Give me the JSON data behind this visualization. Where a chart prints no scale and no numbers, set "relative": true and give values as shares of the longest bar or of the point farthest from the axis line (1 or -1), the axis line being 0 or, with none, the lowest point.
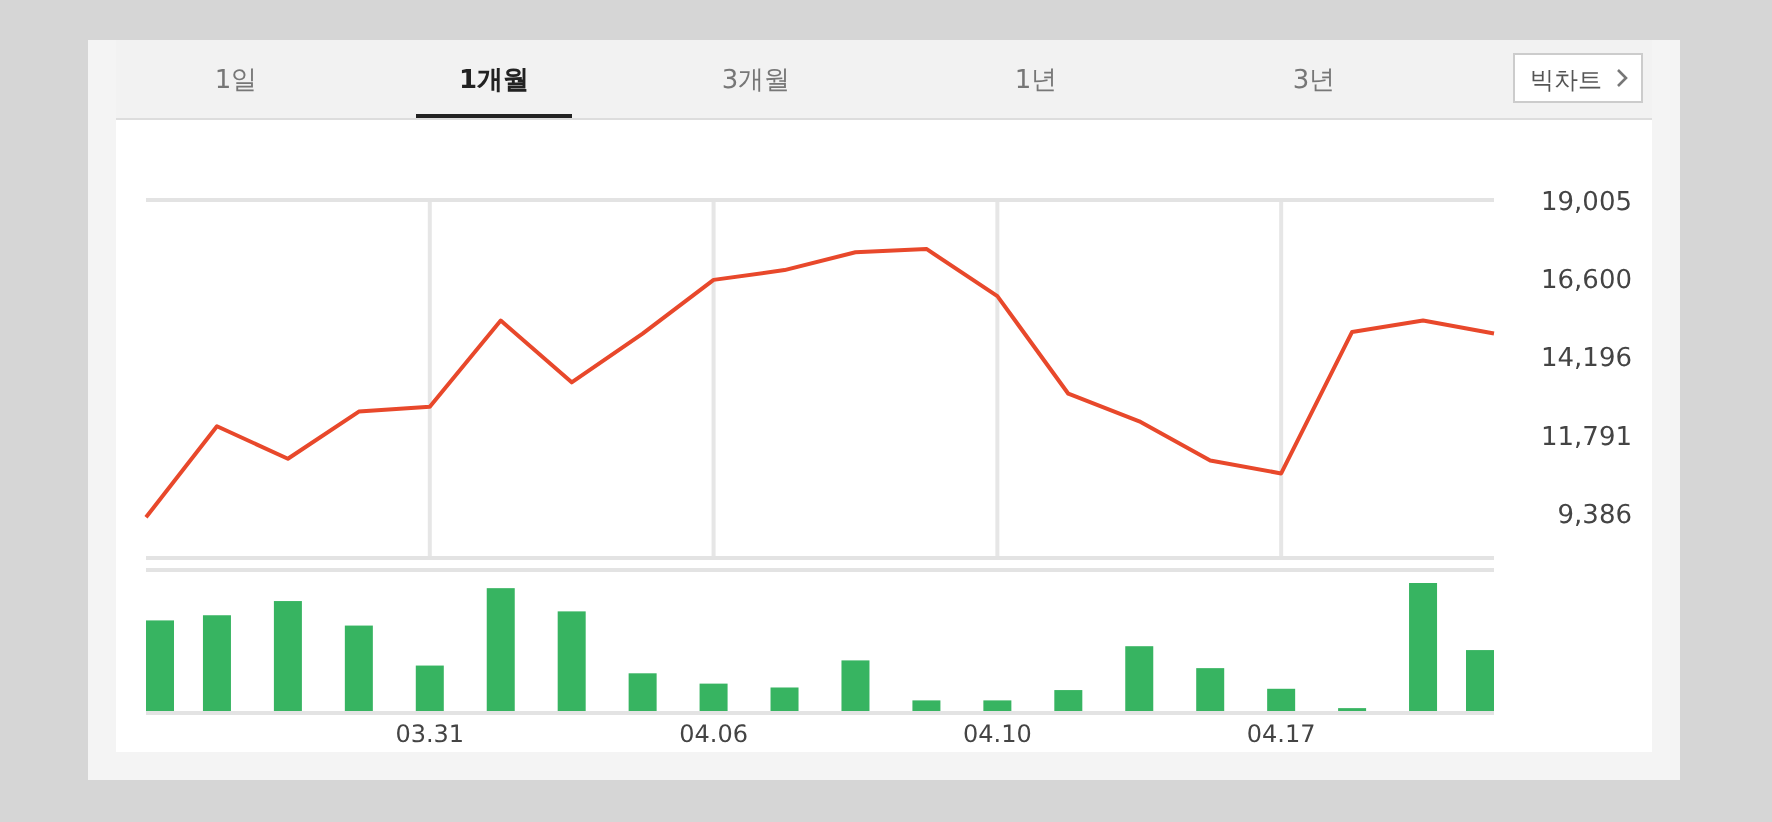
{
  "chart_data": [
    {
      "type": "line",
      "annotations": [
        "1일",
        "1개월",
        "3개월",
        "1년",
        "3년",
        "빅차트"
      ],
      "categories": [
        null,
        null,
        null,
        null,
        "03.31",
        null,
        null,
        null,
        "04.06",
        null,
        null,
        null,
        "04.10",
        null,
        null,
        null,
        "04.17",
        null,
        null,
        null
      ],
      "series": [
        {
          "color": "#e8482b",
          "values": [
            9250,
            12050,
            11050,
            12500,
            12650,
            15300,
            13400,
            14900,
            16550,
            16850,
            17400,
            17500,
            16050,
            13050,
            12200,
            11000,
            10600,
            14950,
            15300,
            14900
          ]
        }
      ],
      "ylim": [
        8000,
        19005
      ],
      "yticks": [
        {
          "value": 9386,
          "label": "9,386"
        },
        {
          "value": 11791,
          "label": "11,791"
        },
        {
          "value": 14196,
          "label": "14,196"
        },
        {
          "value": 16600,
          "label": "16,600"
        },
        {
          "value": 19005,
          "label": "19,005"
        }
      ],
      "grid": "x",
      "tick_labels": "y",
      "marker": "none",
      "line_style": "solid"
    },
    {
      "type": "bar",
      "relative": true,
      "categories": [
        null,
        null,
        null,
        null,
        "03.31",
        null,
        null,
        null,
        "04.06",
        null,
        null,
        null,
        "04.10",
        null,
        null,
        null,
        "04.17",
        null,
        null,
        null
      ],
      "series": [
        {
          "color": "#37b461",
          "values": [
            0.71,
            0.75,
            0.86,
            0.67,
            0.36,
            0.96,
            0.78,
            0.3,
            0.22,
            0.19,
            0.4,
            0.09,
            0.09,
            0.17,
            0.51,
            0.34,
            0.18,
            0.03,
            1,
            0.48
          ]
        }
      ]
    }
  ]
}
